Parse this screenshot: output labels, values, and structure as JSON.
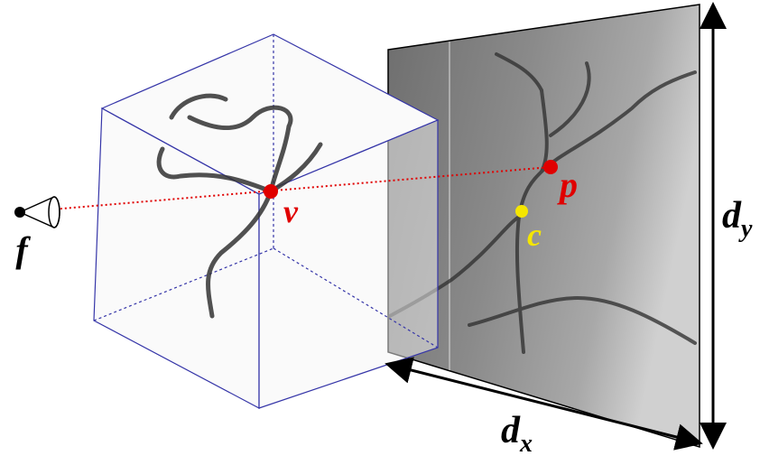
{
  "labels": {
    "camera": "f",
    "volume_point": "v",
    "projection_point": "p",
    "principal_point": "c",
    "width": {
      "main": "d",
      "subscript": "x"
    },
    "height": {
      "main": "d",
      "subscript": "y"
    }
  }
}
